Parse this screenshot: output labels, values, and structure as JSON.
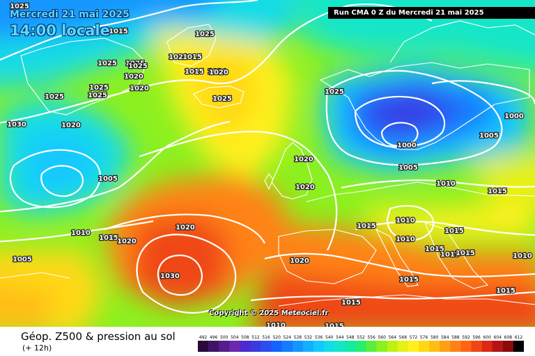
{
  "header": {
    "date": "Mercredi 21 mai 2025",
    "time": "14:00 locale",
    "run": "Run CMA 0 Z du Mercredi 21 mai 2025"
  },
  "copyright": "Copyright © 2025 Meteociel.fr",
  "footer": {
    "title": "Géop. Z500 & pression au sol",
    "subtitle": "(+ 12h)"
  },
  "legend": {
    "values": [
      "492",
      "496",
      "500",
      "504",
      "508",
      "512",
      "516",
      "520",
      "524",
      "528",
      "532",
      "536",
      "540",
      "544",
      "548",
      "552",
      "556",
      "560",
      "564",
      "568",
      "572",
      "576",
      "580",
      "584",
      "588",
      "592",
      "596",
      "600",
      "604",
      "608",
      "612"
    ],
    "colors": [
      "#2a0a3c",
      "#3f1466",
      "#551e8c",
      "#6b28b0",
      "#4d2ad0",
      "#3a3ae0",
      "#2a4ef0",
      "#1464ff",
      "#147cff",
      "#1496ff",
      "#14b0ff",
      "#14c8ff",
      "#14dce6",
      "#14e6c8",
      "#14eaa0",
      "#28ee6e",
      "#5aee3a",
      "#8cf020",
      "#bef014",
      "#e6f014",
      "#fff01e",
      "#ffd814",
      "#ffbe14",
      "#ffa014",
      "#ff8214",
      "#ff6414",
      "#f04614",
      "#dc2814",
      "#b41414",
      "#8c0a0a",
      "#000000"
    ]
  },
  "pressure_labels": [
    "1025",
    "1015",
    "1025",
    "1025",
    "1025",
    "1020",
    "1015",
    "1020",
    "1015",
    "1020",
    "1025",
    "1025",
    "1025",
    "1025",
    "1020",
    "1025",
    "1020",
    "1030",
    "1020",
    "1025",
    "1000",
    "1005",
    "1000",
    "1005",
    "1020",
    "1005",
    "1020",
    "1010",
    "1015",
    "1010",
    "1010",
    "1015",
    "1015",
    "1020",
    "1010",
    "1015",
    "1020",
    "1020",
    "1030",
    "1005",
    "1015",
    "1015",
    "1015",
    "1015",
    "1015",
    "1010",
    "1015",
    "1015",
    "1010"
  ]
}
